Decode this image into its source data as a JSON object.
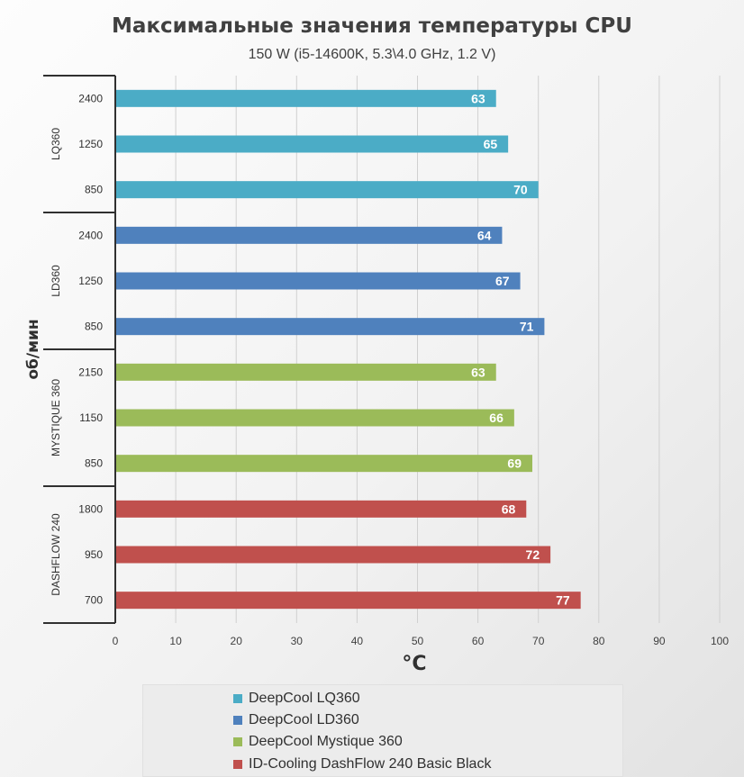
{
  "chart_data": {
    "type": "bar",
    "orientation": "horizontal",
    "title": "Максимальные значения температуры CPU",
    "subtitle": "150 W (i5-14600K, 5.3\\4.0 GHz, 1.2 V)",
    "xlabel": "°C",
    "ylabel": "об/мин",
    "xlim": [
      0,
      100
    ],
    "xticks": [
      "0",
      "10",
      "20",
      "30",
      "40",
      "50",
      "60",
      "70",
      "80",
      "90",
      "100"
    ],
    "grid": "vertical",
    "legend_position": "bottom",
    "groups": [
      {
        "label": "LQ360",
        "series": "DeepCool LQ360",
        "color": "#4bacc6",
        "categories": [
          "2400",
          "1250",
          "850"
        ],
        "values": [
          63,
          65,
          70
        ]
      },
      {
        "label": "LD360",
        "series": "DeepCool LD360",
        "color": "#4f81bd",
        "categories": [
          "2400",
          "1250",
          "850"
        ],
        "values": [
          64,
          67,
          71
        ]
      },
      {
        "label": "MYSTIQUE 360",
        "series": "DeepCool Mystique 360",
        "color": "#9bbb59",
        "categories": [
          "2150",
          "1150",
          "850"
        ],
        "values": [
          63,
          66,
          69
        ]
      },
      {
        "label": "DASHFLOW 240",
        "series": "ID-Cooling DashFlow 240 Basic Black",
        "color": "#c0504d",
        "categories": [
          "1800",
          "950",
          "700"
        ],
        "values": [
          68,
          72,
          77
        ]
      }
    ]
  },
  "legend": [
    {
      "label": "DeepCool LQ360",
      "color": "#4bacc6"
    },
    {
      "label": "DeepCool LD360",
      "color": "#4f81bd"
    },
    {
      "label": "DeepCool Mystique 360",
      "color": "#9bbb59"
    },
    {
      "label": "ID-Cooling DashFlow 240 Basic Black",
      "color": "#c0504d"
    }
  ]
}
